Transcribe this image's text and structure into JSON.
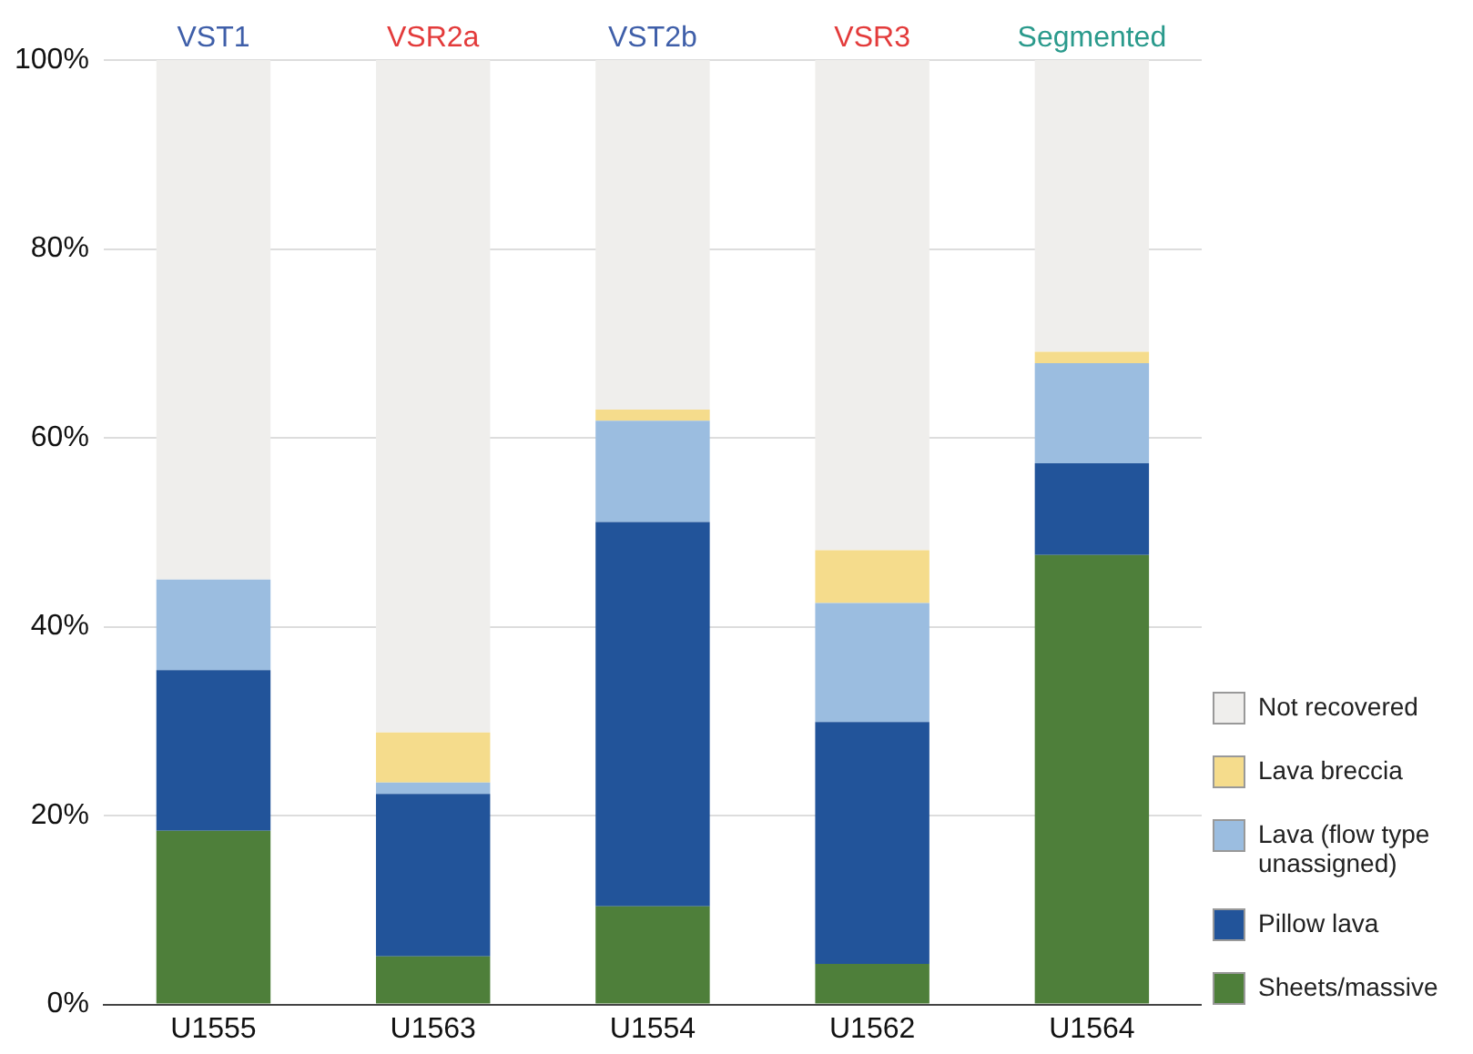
{
  "chart_data": {
    "type": "bar",
    "stacked": true,
    "categories": [
      "U1555",
      "U1563",
      "U1554",
      "U1562",
      "U1564"
    ],
    "series": [
      {
        "name": "Sheets/massive",
        "color": "#4e7f3a",
        "values": [
          18.4,
          5.1,
          10.4,
          4.3,
          47.6
        ]
      },
      {
        "name": "Pillow lava",
        "color": "#22549a",
        "values": [
          17,
          17.2,
          40.7,
          25.6,
          9.7
        ]
      },
      {
        "name": "Lava (flow type unassigned)",
        "color": "#9bbde0",
        "values": [
          9.6,
          1.2,
          10.7,
          12.6,
          10.6
        ]
      },
      {
        "name": "Lava breccia",
        "color": "#f5dc8c",
        "values": [
          0,
          5.3,
          1.2,
          5.6,
          1.2
        ]
      },
      {
        "name": "Not recovered",
        "color": "#efeeec",
        "values": [
          55,
          71.2,
          37,
          51.9,
          30.9
        ]
      }
    ],
    "ylim": [
      0,
      100
    ],
    "yticks": [
      {
        "value": 0,
        "label": "0%"
      },
      {
        "value": 20,
        "label": "20%"
      },
      {
        "value": 40,
        "label": "40%"
      },
      {
        "value": 60,
        "label": "60%"
      },
      {
        "value": 80,
        "label": "80%"
      },
      {
        "value": 100,
        "label": "100%"
      }
    ],
    "grid": "y",
    "legend": "right",
    "annotations": [
      "VST1",
      "VSR2a",
      "VST2b",
      "VSR3",
      "Segmented"
    ]
  }
}
